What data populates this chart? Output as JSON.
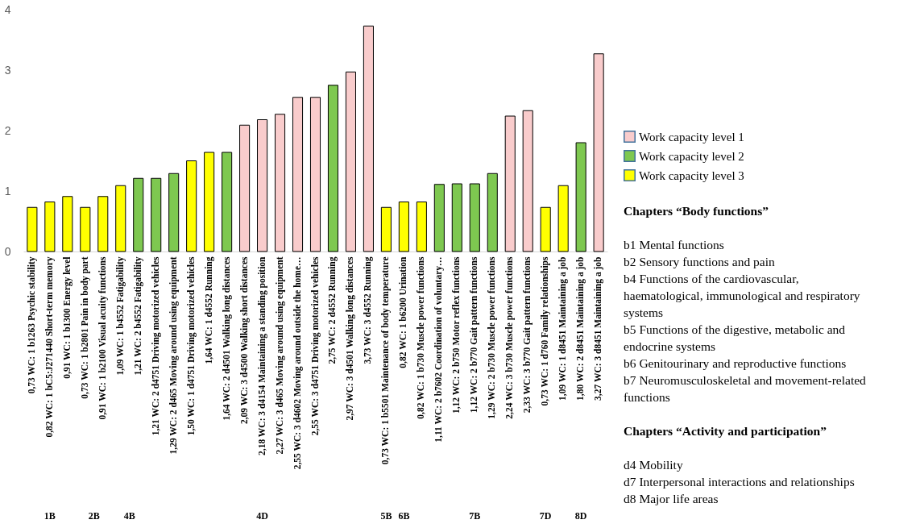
{
  "chart_data": {
    "type": "bar",
    "categories": [
      "0,73 WC: 1 b1263 Psychic stability",
      "0,82 WC: 1 bC5:J271440 Short-term memory",
      "0,91 WC: 1 b1300 Energy level",
      "0,73 WC: 1 b2801 Pain in body part",
      "0,91 WC: 1 b2100 Visual acuity functions",
      "1,09 WC: 1 b4552 Fatigability",
      "1,21 WC: 2 b4552 Fatigability",
      "1,21 WC: 2 d4751 Driving motorized vehicles",
      "1,29 WC: 2 d465 Moving around using equipment",
      "1,50 WC: 1 d4751 Driving motorized vehicles",
      "1,64 WC: 1 d4552 Running",
      "1,64 WC: 2 d4501 Walking long distances",
      "2,09 WC: 3 d4500 Walking short distances",
      "2,18 WC: 3 d4154 Maintaining a standing position",
      "2,27 WC: 3 d465 Moving around using equipment",
      "2,55 WC: 3 d4602 Moving around outside the home…",
      "2,55 WC: 3 d4751 Driving motorized vehicles",
      "2,75 WC: 2 d4552 Running",
      "2,97 WC: 3 d4501 Walking long distances",
      "3,73 WC: 3 d4552 Running",
      "0,73 WC: 1 b5501 Maintenance of body temperature",
      "0,82 WC: 1 b6200 Urination",
      "0,82 WC: 1 b730 Muscle power functions",
      "1,11 WC: 2 b7602 Coordination of voluntary…",
      "1,12 WC: 2 b750 Motor reflex functions",
      "1,12 WC: 2 b770 Gait pattern functions",
      "1,29 WC: 2 b730 Muscle power functions",
      "2,24 WC: 3 b730 Muscle power functions",
      "2,33 WC: 3 b770 Gait pattern functions",
      "0,73 WC: 1 d760 Family relationships",
      "1,09 WC: 1 d8451 Maintaining a job",
      "1,80 WC: 2 d8451 Maintaining a job",
      "3,27 WC: 3 d8451 Maintaining a job"
    ],
    "series": [
      {
        "name": "Work capacity level 1",
        "color": "#f9cccc",
        "values": [
          null,
          null,
          null,
          null,
          null,
          null,
          null,
          null,
          null,
          null,
          null,
          null,
          2.09,
          2.18,
          2.27,
          2.55,
          2.55,
          null,
          2.97,
          3.73,
          null,
          null,
          null,
          null,
          null,
          null,
          null,
          2.24,
          2.33,
          null,
          null,
          null,
          3.27
        ]
      },
      {
        "name": "Work capacity level 2",
        "color": "#7ec850",
        "values": [
          null,
          null,
          null,
          null,
          null,
          null,
          1.21,
          1.21,
          1.29,
          null,
          null,
          1.64,
          null,
          null,
          null,
          null,
          null,
          2.75,
          null,
          null,
          null,
          null,
          null,
          1.11,
          1.12,
          1.12,
          1.29,
          null,
          null,
          null,
          null,
          1.8,
          null
        ]
      },
      {
        "name": "Work capacity level 3",
        "color": "#ffff00",
        "values": [
          0.73,
          0.82,
          0.91,
          0.73,
          0.91,
          1.09,
          null,
          null,
          null,
          1.5,
          1.64,
          null,
          null,
          null,
          null,
          null,
          null,
          null,
          null,
          null,
          0.73,
          0.82,
          0.82,
          null,
          null,
          null,
          null,
          null,
          null,
          0.73,
          1.09,
          null,
          null
        ]
      }
    ],
    "ylim": [
      0,
      4
    ],
    "yticks": [
      0,
      1,
      2,
      3,
      4
    ],
    "grid": false,
    "legend": "right",
    "annotations": [
      "1B",
      "2B",
      "4B",
      "4D",
      "5B",
      "6B",
      "7B",
      "7D",
      "8D",
      "Chapters “Body functions”",
      "b1 Mental functions",
      "b2 Sensory functions and pain",
      "b4 Functions of the cardiovascular, haematological,   immunological and respiratory systems",
      "b5 Functions of the digestive, metabolic and endocrine systems",
      "b6 Genitourinary and reproductive functions",
      "b7 Neuromusculoskeletal and movement-related functions",
      "Chapters “Activity and participation”",
      "d4 Mobility",
      "d7 Interpersonal interactions and relationships",
      "d8 Major life areas"
    ]
  }
}
